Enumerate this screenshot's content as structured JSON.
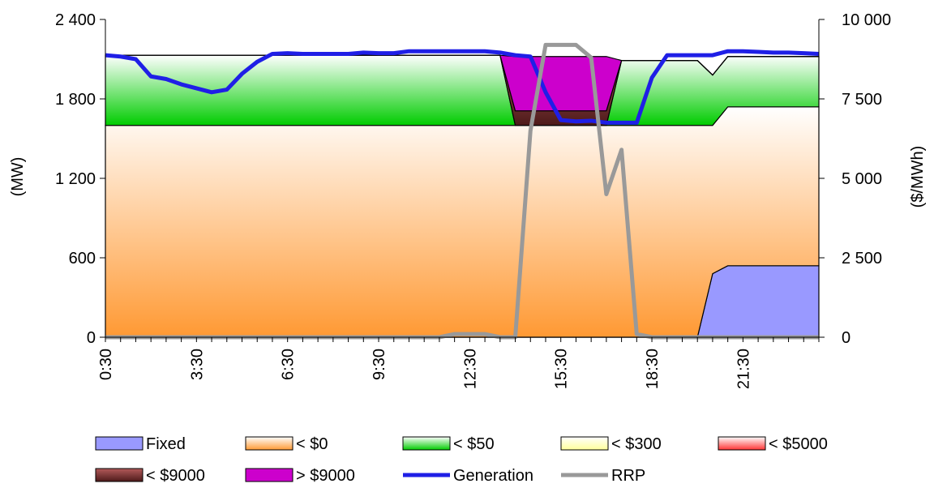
{
  "chart_data": {
    "type": "area",
    "x": [
      "0:30",
      "1:00",
      "1:30",
      "2:00",
      "2:30",
      "3:00",
      "3:30",
      "4:00",
      "4:30",
      "5:00",
      "5:30",
      "6:00",
      "6:30",
      "7:00",
      "7:30",
      "8:00",
      "8:30",
      "9:00",
      "9:30",
      "10:00",
      "10:30",
      "11:00",
      "11:30",
      "12:00",
      "12:30",
      "13:00",
      "13:30",
      "14:00",
      "14:30",
      "15:00",
      "15:30",
      "16:00",
      "16:30",
      "17:00",
      "17:30",
      "18:00",
      "18:30",
      "19:00",
      "19:30",
      "20:00",
      "20:30",
      "21:00",
      "21:30",
      "22:00",
      "22:30",
      "23:00",
      "23:30",
      "0:00"
    ],
    "x_tick_labels": [
      "0:30",
      "3:30",
      "6:30",
      "9:30",
      "12:30",
      "15:30",
      "18:30",
      "21:30"
    ],
    "y_left": {
      "label": "(MW)",
      "ticks": [
        "0",
        "600",
        "1 200",
        "1 800",
        "2 400"
      ],
      "min": 0,
      "max": 2400
    },
    "y_right": {
      "label": "($/MWh)",
      "ticks": [
        "0",
        "2 500",
        "5 000",
        "7 500",
        "10 000"
      ],
      "min": 0,
      "max": 10000
    },
    "stacked_series": [
      {
        "name": "Fixed",
        "color": "#9999ff",
        "values": [
          0,
          0,
          0,
          0,
          0,
          0,
          0,
          0,
          0,
          0,
          0,
          0,
          0,
          0,
          0,
          0,
          0,
          0,
          0,
          0,
          0,
          0,
          0,
          0,
          0,
          0,
          0,
          0,
          0,
          0,
          0,
          0,
          0,
          0,
          0,
          0,
          0,
          0,
          0,
          0,
          480,
          540,
          540,
          540,
          540,
          540,
          540,
          540
        ]
      },
      {
        "name": "< $0",
        "color": "#ff9933",
        "values": [
          1600,
          1600,
          1600,
          1600,
          1600,
          1600,
          1600,
          1600,
          1600,
          1600,
          1600,
          1600,
          1600,
          1600,
          1600,
          1600,
          1600,
          1600,
          1600,
          1600,
          1600,
          1600,
          1600,
          1600,
          1600,
          1600,
          1600,
          1600,
          1600,
          1600,
          1600,
          1600,
          1600,
          1600,
          1600,
          1600,
          1600,
          1600,
          1600,
          1600,
          1120,
          1200,
          1200,
          1200,
          1200,
          1200,
          1200,
          1200
        ]
      },
      {
        "name": "< $50",
        "color": "#00cc00",
        "values": [
          530,
          530,
          530,
          530,
          530,
          530,
          530,
          530,
          530,
          530,
          530,
          530,
          530,
          530,
          530,
          530,
          530,
          530,
          530,
          530,
          530,
          530,
          530,
          530,
          530,
          530,
          530,
          0,
          0,
          0,
          0,
          0,
          0,
          0,
          490,
          490,
          490,
          490,
          490,
          490,
          380,
          380,
          380,
          380,
          380,
          380,
          380,
          380
        ]
      },
      {
        "name": "< $300",
        "color": "#ffff99",
        "values": [
          0,
          0,
          0,
          0,
          0,
          0,
          0,
          0,
          0,
          0,
          0,
          0,
          0,
          0,
          0,
          0,
          0,
          0,
          0,
          0,
          0,
          0,
          0,
          0,
          0,
          0,
          0,
          0,
          0,
          0,
          0,
          0,
          0,
          0,
          0,
          0,
          0,
          0,
          0,
          0,
          0,
          0,
          0,
          0,
          0,
          0,
          0,
          0
        ]
      },
      {
        "name": "< $5000",
        "color": "#ff3333",
        "values": [
          0,
          0,
          0,
          0,
          0,
          0,
          0,
          0,
          0,
          0,
          0,
          0,
          0,
          0,
          0,
          0,
          0,
          0,
          0,
          0,
          0,
          0,
          0,
          0,
          0,
          0,
          0,
          0,
          0,
          0,
          0,
          0,
          0,
          0,
          0,
          0,
          0,
          0,
          0,
          0,
          0,
          0,
          0,
          0,
          0,
          0,
          0,
          0
        ]
      },
      {
        "name": "< $9000",
        "color": "#993333",
        "values": [
          0,
          0,
          0,
          0,
          0,
          0,
          0,
          0,
          0,
          0,
          0,
          0,
          0,
          0,
          0,
          0,
          0,
          0,
          0,
          0,
          0,
          0,
          0,
          0,
          0,
          0,
          0,
          110,
          110,
          110,
          110,
          110,
          110,
          110,
          0,
          0,
          0,
          0,
          0,
          0,
          0,
          0,
          0,
          0,
          0,
          0,
          0,
          0
        ]
      },
      {
        "name": "> $9000",
        "color": "#cc00cc",
        "values": [
          0,
          0,
          0,
          0,
          0,
          0,
          0,
          0,
          0,
          0,
          0,
          0,
          0,
          0,
          0,
          0,
          0,
          0,
          0,
          0,
          0,
          0,
          0,
          0,
          0,
          0,
          0,
          410,
          410,
          410,
          410,
          410,
          410,
          410,
          0,
          0,
          0,
          0,
          0,
          0,
          0,
          0,
          0,
          0,
          0,
          0,
          0,
          0
        ]
      }
    ],
    "line_series": [
      {
        "name": "Generation",
        "axis": "left",
        "color": "#1f1fe6",
        "values": [
          2130,
          2120,
          2100,
          1970,
          1950,
          1910,
          1880,
          1850,
          1870,
          1990,
          2080,
          2140,
          2145,
          2140,
          2140,
          2140,
          2140,
          2150,
          2145,
          2145,
          2160,
          2160,
          2160,
          2160,
          2160,
          2160,
          2150,
          2130,
          2120,
          1850,
          1640,
          1630,
          1635,
          1620,
          1620,
          1620,
          1960,
          2130,
          2130,
          2130,
          2130,
          2160,
          2160,
          2155,
          2150,
          2150,
          2145,
          2140
        ]
      },
      {
        "name": "RRP",
        "axis": "right",
        "color": "#999999",
        "values": [
          0,
          0,
          0,
          0,
          0,
          0,
          0,
          0,
          0,
          0,
          0,
          0,
          0,
          0,
          0,
          0,
          0,
          0,
          0,
          0,
          0,
          0,
          0,
          100,
          100,
          100,
          0,
          0,
          6500,
          9200,
          9200,
          9200,
          8800,
          4500,
          5900,
          100,
          0,
          0,
          0,
          0,
          0,
          0,
          0,
          0,
          0,
          0,
          0,
          0
        ]
      }
    ],
    "legend_placement": "bottom",
    "grid": false
  }
}
